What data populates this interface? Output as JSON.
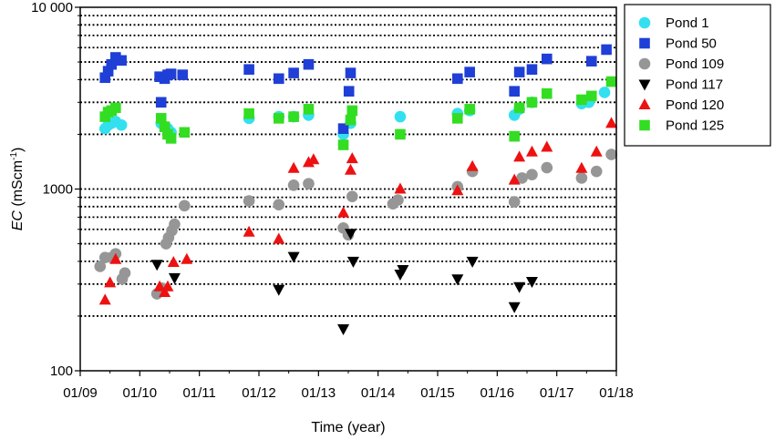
{
  "chart_data": {
    "type": "scatter",
    "title": "",
    "xlabel": "Time (year)",
    "ylabel_italic": "EC",
    "ylabel_rest": " (mScm",
    "ylabel_sup": "-1",
    "ylabel_close": ")",
    "yscale": "log",
    "ylim": [
      100,
      10000
    ],
    "xlim": [
      "2009-01-01",
      "2018-01-01"
    ],
    "x_tick_labels": [
      "01/09",
      "01/10",
      "01/11",
      "01/12",
      "01/13",
      "01/14",
      "01/15",
      "01/16",
      "01/17",
      "01/18"
    ],
    "y_tick_labels": [
      {
        "value": 100,
        "label": "100"
      },
      {
        "value": 1000,
        "label": "1000"
      },
      {
        "value": 10000,
        "label": "10 000"
      }
    ],
    "gridlines_y": [
      200,
      300,
      400,
      500,
      600,
      700,
      800,
      900,
      1000,
      2000,
      3000,
      4000,
      5000,
      6000,
      7000,
      8000,
      9000
    ],
    "grid": "horizontal dotted",
    "legend_position": "right",
    "series": [
      {
        "name": "Pond 1",
        "marker": "circle",
        "color": "#33e0f0",
        "points": [
          [
            "2009-06-01",
            2150
          ],
          [
            "2009-06-20",
            2250
          ],
          [
            "2009-07-10",
            2300
          ],
          [
            "2009-08-05",
            2350
          ],
          [
            "2009-09-10",
            2250
          ],
          [
            "2010-05-10",
            2300
          ],
          [
            "2010-06-01",
            2200
          ],
          [
            "2010-06-20",
            2150
          ],
          [
            "2010-07-10",
            2050
          ],
          [
            "2011-11-01",
            2450
          ],
          [
            "2012-05-01",
            2500
          ],
          [
            "2012-08-01",
            2500
          ],
          [
            "2012-11-01",
            2550
          ],
          [
            "2013-06-01",
            2000
          ],
          [
            "2013-07-15",
            2300
          ],
          [
            "2014-05-15",
            2500
          ],
          [
            "2015-05-01",
            2600
          ],
          [
            "2015-07-15",
            2700
          ],
          [
            "2016-04-15",
            2550
          ],
          [
            "2016-05-15",
            2750
          ],
          [
            "2016-08-01",
            3000
          ],
          [
            "2017-06-01",
            2950
          ],
          [
            "2017-07-15",
            3000
          ],
          [
            "2017-10-20",
            3400
          ]
        ]
      },
      {
        "name": "Pond 50",
        "marker": "square",
        "color": "#1f3fd6",
        "points": [
          [
            "2009-06-01",
            4100
          ],
          [
            "2009-06-20",
            4450
          ],
          [
            "2009-07-10",
            4850
          ],
          [
            "2009-08-05",
            5300
          ],
          [
            "2009-09-10",
            5100
          ],
          [
            "2010-05-01",
            4150
          ],
          [
            "2010-05-10",
            3000
          ],
          [
            "2010-06-01",
            4050
          ],
          [
            "2010-06-20",
            4250
          ],
          [
            "2010-07-10",
            4300
          ],
          [
            "2010-09-20",
            4250
          ],
          [
            "2011-11-01",
            4550
          ],
          [
            "2012-05-01",
            4050
          ],
          [
            "2012-08-01",
            4350
          ],
          [
            "2012-11-01",
            4850
          ],
          [
            "2013-06-01",
            2150
          ],
          [
            "2013-07-05",
            3450
          ],
          [
            "2013-07-15",
            4350
          ],
          [
            "2015-05-01",
            4050
          ],
          [
            "2015-07-15",
            4400
          ],
          [
            "2016-04-15",
            3450
          ],
          [
            "2016-05-15",
            4400
          ],
          [
            "2016-08-01",
            4550
          ],
          [
            "2016-11-01",
            5200
          ],
          [
            "2017-08-01",
            5050
          ],
          [
            "2017-11-01",
            5850
          ]
        ]
      },
      {
        "name": "Pond 109",
        "marker": "circle",
        "color": "#969696",
        "points": [
          [
            "2009-05-01",
            375
          ],
          [
            "2009-06-01",
            420
          ],
          [
            "2009-07-10",
            420
          ],
          [
            "2009-08-05",
            440
          ],
          [
            "2009-09-15",
            320
          ],
          [
            "2009-10-01",
            345
          ],
          [
            "2010-04-15",
            265
          ],
          [
            "2010-05-15",
            285
          ],
          [
            "2010-06-10",
            500
          ],
          [
            "2010-06-25",
            540
          ],
          [
            "2010-07-15",
            590
          ],
          [
            "2010-08-01",
            640
          ],
          [
            "2010-10-01",
            810
          ],
          [
            "2011-11-01",
            860
          ],
          [
            "2012-05-01",
            820
          ],
          [
            "2012-08-01",
            1050
          ],
          [
            "2012-11-01",
            1070
          ],
          [
            "2013-06-01",
            610
          ],
          [
            "2013-07-01",
            560
          ],
          [
            "2013-07-25",
            910
          ],
          [
            "2014-04-01",
            830
          ],
          [
            "2014-05-01",
            870
          ],
          [
            "2015-05-01",
            1030
          ],
          [
            "2015-08-01",
            1250
          ],
          [
            "2016-04-15",
            850
          ],
          [
            "2016-06-01",
            1150
          ],
          [
            "2016-08-01",
            1200
          ],
          [
            "2016-11-01",
            1310
          ],
          [
            "2017-06-01",
            1150
          ],
          [
            "2017-09-01",
            1250
          ],
          [
            "2017-12-01",
            1550
          ]
        ]
      },
      {
        "name": "Pond 117",
        "marker": "triangle-down",
        "color": "#000000",
        "points": [
          [
            "2010-04-15",
            385
          ],
          [
            "2010-08-01",
            325
          ],
          [
            "2012-05-01",
            280
          ],
          [
            "2012-08-01",
            425
          ],
          [
            "2013-06-01",
            170
          ],
          [
            "2013-07-15",
            570
          ],
          [
            "2013-08-01",
            400
          ],
          [
            "2014-05-15",
            340
          ],
          [
            "2014-06-01",
            360
          ],
          [
            "2015-05-01",
            320
          ],
          [
            "2015-08-01",
            400
          ],
          [
            "2016-04-15",
            225
          ],
          [
            "2016-05-15",
            290
          ],
          [
            "2016-08-01",
            310
          ]
        ]
      },
      {
        "name": "Pond 120",
        "marker": "triangle-up",
        "color": "#ee1111",
        "points": [
          [
            "2009-06-01",
            245
          ],
          [
            "2009-07-01",
            305
          ],
          [
            "2009-08-05",
            410
          ],
          [
            "2010-05-01",
            290
          ],
          [
            "2010-06-01",
            270
          ],
          [
            "2010-06-20",
            290
          ],
          [
            "2010-07-25",
            395
          ],
          [
            "2010-10-15",
            410
          ],
          [
            "2011-11-01",
            580
          ],
          [
            "2012-05-01",
            530
          ],
          [
            "2012-08-01",
            1300
          ],
          [
            "2012-11-01",
            1400
          ],
          [
            "2012-12-01",
            1450
          ],
          [
            "2013-06-01",
            740
          ],
          [
            "2013-07-15",
            1270
          ],
          [
            "2013-07-25",
            1470
          ],
          [
            "2014-05-15",
            1000
          ],
          [
            "2015-05-01",
            980
          ],
          [
            "2015-08-01",
            1330
          ],
          [
            "2016-04-15",
            1120
          ],
          [
            "2016-05-15",
            1500
          ],
          [
            "2016-08-01",
            1600
          ],
          [
            "2016-11-01",
            1700
          ],
          [
            "2017-06-01",
            1300
          ],
          [
            "2017-09-01",
            1600
          ],
          [
            "2017-12-01",
            2300
          ]
        ]
      },
      {
        "name": "Pond 125",
        "marker": "square",
        "color": "#33dd22",
        "points": [
          [
            "2009-06-01",
            2500
          ],
          [
            "2009-06-20",
            2650
          ],
          [
            "2009-07-10",
            2700
          ],
          [
            "2009-08-05",
            2800
          ],
          [
            "2010-05-10",
            2450
          ],
          [
            "2010-06-01",
            2200
          ],
          [
            "2010-06-20",
            2000
          ],
          [
            "2010-07-10",
            1900
          ],
          [
            "2010-10-01",
            2050
          ],
          [
            "2011-11-01",
            2600
          ],
          [
            "2012-05-01",
            2450
          ],
          [
            "2012-08-01",
            2500
          ],
          [
            "2012-11-01",
            2750
          ],
          [
            "2013-06-01",
            1750
          ],
          [
            "2013-07-15",
            2400
          ],
          [
            "2013-07-25",
            2700
          ],
          [
            "2014-05-15",
            2000
          ],
          [
            "2015-05-01",
            2450
          ],
          [
            "2015-07-15",
            2750
          ],
          [
            "2016-04-15",
            1950
          ],
          [
            "2016-05-15",
            2800
          ],
          [
            "2016-08-01",
            3000
          ],
          [
            "2016-11-01",
            3350
          ],
          [
            "2017-06-01",
            3100
          ],
          [
            "2017-08-01",
            3250
          ],
          [
            "2017-12-01",
            3900
          ]
        ]
      }
    ]
  }
}
